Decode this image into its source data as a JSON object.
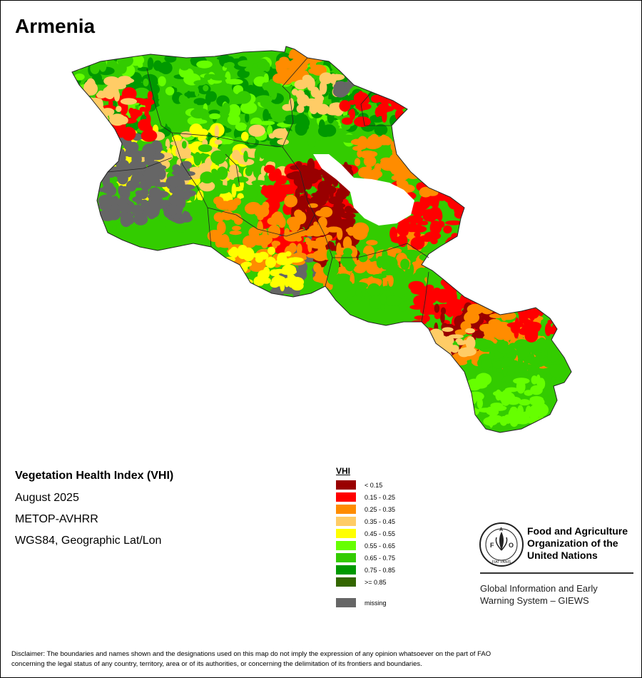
{
  "map": {
    "title": "Armenia",
    "product": "Vegetation Health Index (VHI)",
    "date": "August 2025",
    "sensor": "METOP-AVHRR",
    "projection": "WGS84, Geographic Lat/Lon",
    "lake_color": "#ffffff",
    "boundary_color": "#222222"
  },
  "legend": {
    "title": "VHI",
    "classes": [
      {
        "label": "< 0.15",
        "color": "#990000"
      },
      {
        "label": "0.15 - 0.25",
        "color": "#ff0000"
      },
      {
        "label": "0.25 - 0.35",
        "color": "#ff8c00"
      },
      {
        "label": "0.35 - 0.45",
        "color": "#ffcc66"
      },
      {
        "label": "0.45 - 0.55",
        "color": "#ffff00"
      },
      {
        "label": "0.55 - 0.65",
        "color": "#66ff00"
      },
      {
        "label": "0.65 - 0.75",
        "color": "#33cc00"
      },
      {
        "label": "0.75 - 0.85",
        "color": "#009900"
      },
      {
        "label": ">= 0.85",
        "color": "#336600"
      }
    ],
    "missing": {
      "label": "missing",
      "color": "#666666"
    }
  },
  "branding": {
    "org_line1": "Food and Agriculture",
    "org_line2": "Organization of the",
    "org_line3": "United Nations",
    "giews_line1": "Global Information and Early",
    "giews_line2": "Warning System – GIEWS",
    "logo_text": "FAO",
    "logo_motto": "FIAT PANIS"
  },
  "disclaimer": {
    "line1": "Disclaimer: The boundaries and names shown and the designations used on this map do not imply the expression of any opinion whatsoever on the part of FAO",
    "line2": "concerning the legal status of any country, territory, area or of its authorities, or concerning the delimitation of its frontiers and boundaries."
  }
}
